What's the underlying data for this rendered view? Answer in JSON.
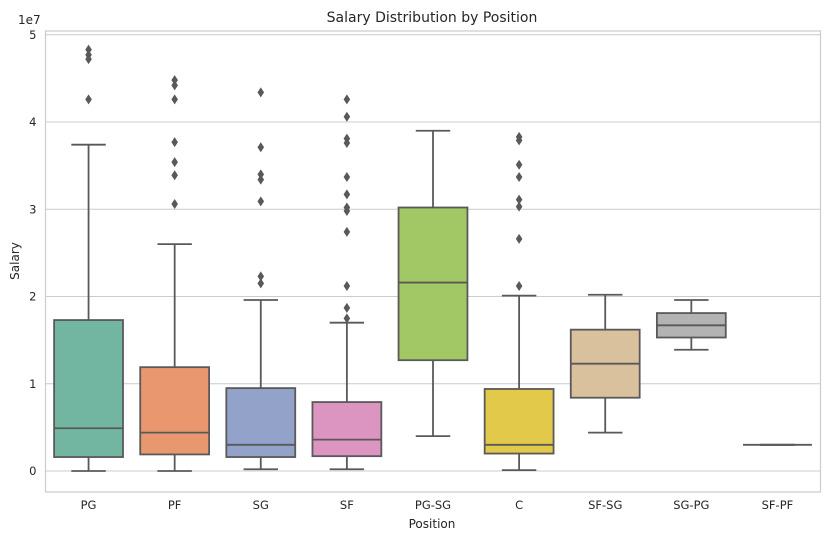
{
  "chart_data": {
    "type": "box",
    "title": "Salary Distribution by Position",
    "xlabel": "Position",
    "ylabel": "Salary",
    "y_offset_label": "1e7",
    "ylim": [
      -0.25,
      5.1
    ],
    "yticks": [
      0,
      1,
      2,
      3,
      4,
      5
    ],
    "y_unit_multiplier": 10000000,
    "grid": "horizontal",
    "edge_color": "#595959",
    "grid_color": "#cccccc",
    "categories": [
      "PG",
      "PF",
      "SG",
      "SF",
      "PG-SG",
      "C",
      "SF-SG",
      "SG-PG",
      "SF-PF"
    ],
    "boxes": [
      {
        "category": "PG",
        "color": "#72b6a1",
        "whisker_low": 0.0,
        "q1": 0.16,
        "median": 0.49,
        "q3": 1.73,
        "whisker_high": 3.74,
        "outliers": [
          4.83,
          4.77,
          4.72,
          4.26
        ]
      },
      {
        "category": "PF",
        "color": "#e9976f",
        "whisker_low": 0.0,
        "q1": 0.19,
        "median": 0.44,
        "q3": 1.19,
        "whisker_high": 2.6,
        "outliers": [
          4.48,
          4.42,
          4.26,
          3.77,
          3.54,
          3.39,
          3.06
        ]
      },
      {
        "category": "SG",
        "color": "#93a2c8",
        "whisker_low": 0.02,
        "q1": 0.16,
        "median": 0.3,
        "q3": 0.95,
        "whisker_high": 1.96,
        "outliers": [
          4.34,
          3.71,
          3.4,
          3.34,
          3.09,
          2.23,
          2.15
        ]
      },
      {
        "category": "SF",
        "color": "#dc94c1",
        "whisker_low": 0.02,
        "q1": 0.17,
        "median": 0.36,
        "q3": 0.79,
        "whisker_high": 1.7,
        "outliers": [
          4.26,
          4.06,
          3.81,
          3.76,
          3.37,
          3.17,
          3.02,
          2.98,
          2.74,
          2.12,
          1.87,
          1.75
        ]
      },
      {
        "category": "PG-SG",
        "color": "#a2c865",
        "whisker_low": 0.4,
        "q1": 1.27,
        "median": 2.16,
        "q3": 3.02,
        "whisker_high": 3.9,
        "outliers": []
      },
      {
        "category": "C",
        "color": "#e3c94a",
        "whisker_low": 0.01,
        "q1": 0.2,
        "median": 0.3,
        "q3": 0.94,
        "whisker_high": 2.01,
        "outliers": [
          3.83,
          3.79,
          3.51,
          3.37,
          3.11,
          3.03,
          2.66,
          2.12
        ]
      },
      {
        "category": "SF-SG",
        "color": "#dac19d",
        "whisker_low": 0.44,
        "q1": 0.84,
        "median": 1.23,
        "q3": 1.62,
        "whisker_high": 2.02,
        "outliers": []
      },
      {
        "category": "SG-PG",
        "color": "#b3b3b3",
        "whisker_low": 1.39,
        "q1": 1.53,
        "median": 1.67,
        "q3": 1.81,
        "whisker_high": 1.96,
        "outliers": []
      },
      {
        "category": "SF-PF",
        "color": "#b3b3b3",
        "whisker_low": 0.3,
        "q1": 0.3,
        "median": 0.3,
        "q3": 0.3,
        "whisker_high": 0.3,
        "outliers": []
      }
    ]
  }
}
